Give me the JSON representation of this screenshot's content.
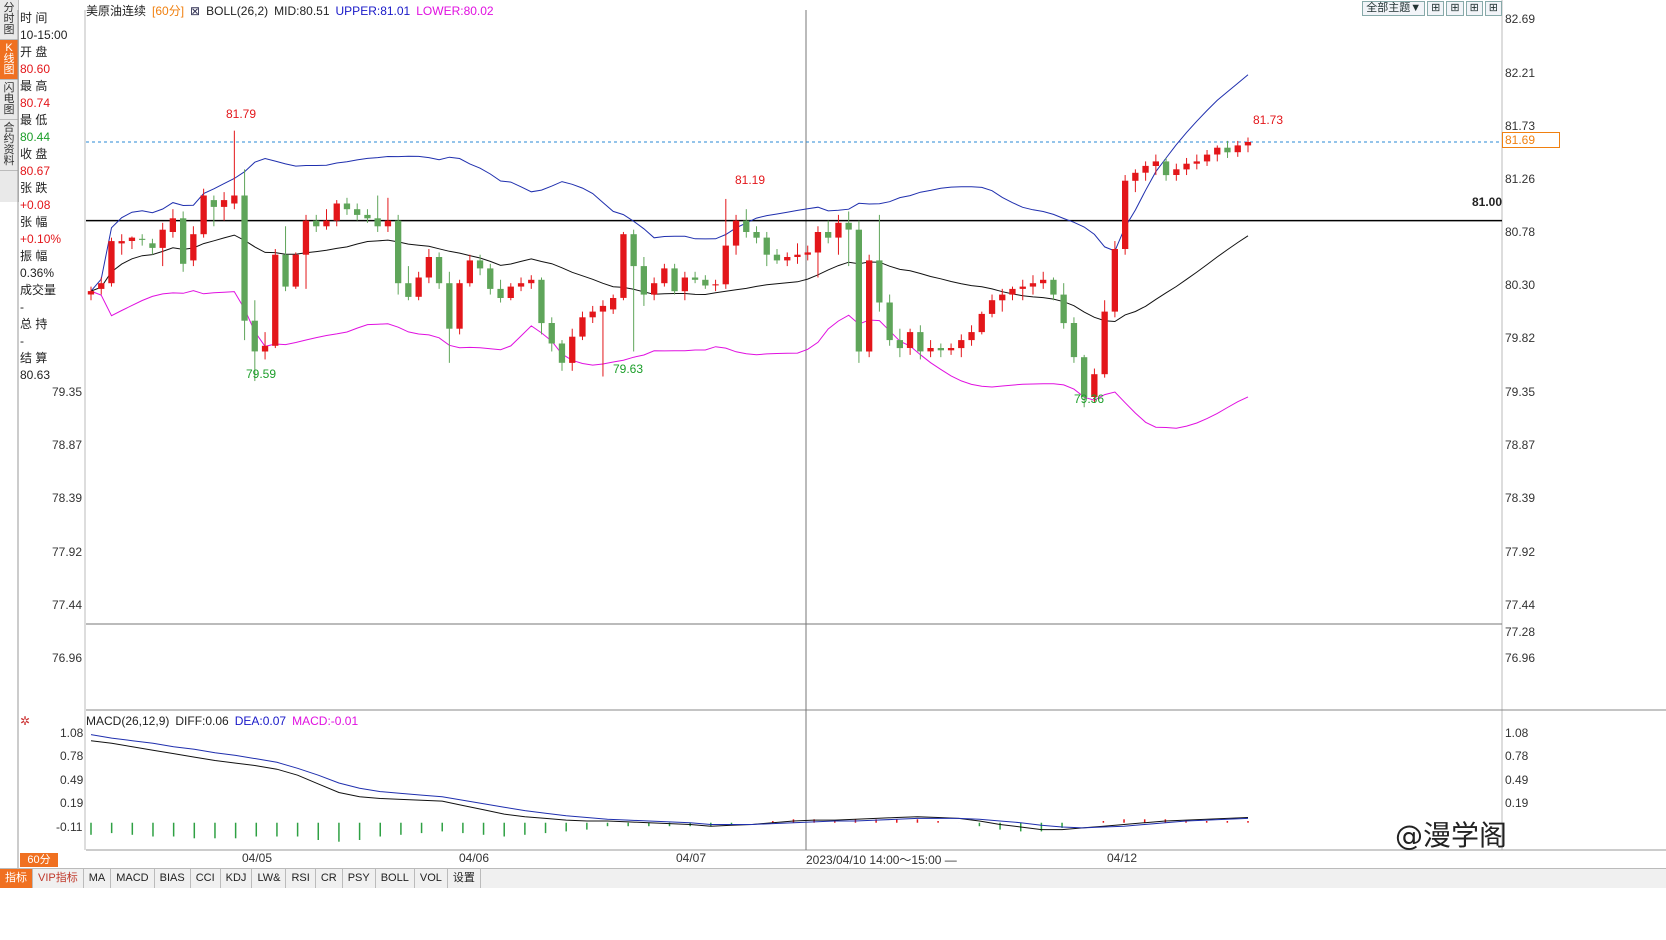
{
  "sidebar": {
    "tabs": [
      "分时图",
      "K线图",
      "闪电图",
      "合约资料"
    ],
    "info": [
      {
        "label": "时 间",
        "value": "10-15:00",
        "color": "normal"
      },
      {
        "label": "开 盘",
        "value": "80.60",
        "color": "red"
      },
      {
        "label": "最 高",
        "value": "80.74",
        "color": "red"
      },
      {
        "label": "最 低",
        "value": "80.44",
        "color": "green"
      },
      {
        "label": "收 盘",
        "value": "80.67",
        "color": "red"
      },
      {
        "label": "张 跌",
        "value": "+0.08",
        "color": "red"
      },
      {
        "label": "张 幅",
        "value": "+0.10%",
        "color": "red"
      },
      {
        "label": "振 幅",
        "value": "0.36%",
        "color": "normal"
      },
      {
        "label": "成交量",
        "value": "-",
        "color": "normal"
      },
      {
        "label": "总 持",
        "value": "-",
        "color": "normal"
      },
      {
        "label": "结 算",
        "value": "80.63",
        "color": "normal"
      }
    ]
  },
  "header": {
    "name": "美原油连续",
    "period_tag": "[60分]",
    "indicator": "BOLL(26,2)",
    "mid": "MID:80.51",
    "upper": "UPPER:81.01",
    "lower": "LOWER:80.02"
  },
  "toolbar": {
    "theme_label": "全部主题▼",
    "btn1": "⊞",
    "btn2": "⊞",
    "btn3": "⊞",
    "btn4": "⊞"
  },
  "price_axis": {
    "ticks": [
      "82.69",
      "82.21",
      "81.73",
      "81.26",
      "80.78",
      "80.30",
      "79.82",
      "79.35",
      "78.87",
      "78.39",
      "77.92",
      "77.44",
      "76.96"
    ],
    "current": "81.69",
    "level_line": "81.00",
    "cursor_low": "77.28"
  },
  "annotations": {
    "high1": "81.79",
    "low1": "79.59",
    "high2": "81.19",
    "low2": "79.63",
    "low3": "79.36",
    "high3": "81.73"
  },
  "macd": {
    "label": "MACD(26,12,9)",
    "diff": "DIFF:0.06",
    "dea": "DEA:0.07",
    "macd": "MACD:-0.01",
    "ticks": [
      "1.08",
      "0.78",
      "0.49",
      "0.19",
      "-0.11"
    ]
  },
  "x_axis": {
    "labels": [
      "04/05",
      "04/06",
      "04/07",
      "04/12"
    ],
    "cursor_time": "2023/04/10 14:00～15:00 —"
  },
  "bottom_tabs": {
    "period": "60分",
    "items": [
      "指标",
      "VIP指标",
      "MA",
      "MACD",
      "BIAS",
      "CCI",
      "KDJ",
      "LW&",
      "RSI",
      "CR",
      "PSY",
      "BOLL",
      "VOL",
      "设置"
    ]
  },
  "watermark": "@漫学阁",
  "colors": {
    "up": "#e3161a",
    "down": "#5fa55a",
    "upper": "#1f2fae",
    "lower": "#e010e0",
    "mid": "#111111",
    "accent": "#f07020"
  },
  "chart_data": {
    "type": "candlestick",
    "title": "美原油连续",
    "period": "60分",
    "ylim": [
      76.7,
      82.85
    ],
    "candles": [
      {
        "o": 80.35,
        "h": 80.42,
        "l": 80.3,
        "c": 80.38
      },
      {
        "o": 80.4,
        "h": 80.5,
        "l": 80.35,
        "c": 80.45
      },
      {
        "o": 80.45,
        "h": 80.85,
        "l": 80.42,
        "c": 80.82
      },
      {
        "o": 80.8,
        "h": 80.88,
        "l": 80.7,
        "c": 80.82
      },
      {
        "o": 80.82,
        "h": 80.86,
        "l": 80.75,
        "c": 80.85
      },
      {
        "o": 80.84,
        "h": 80.88,
        "l": 80.78,
        "c": 80.83
      },
      {
        "o": 80.8,
        "h": 80.84,
        "l": 80.7,
        "c": 80.76
      },
      {
        "o": 80.76,
        "h": 80.98,
        "l": 80.6,
        "c": 80.92
      },
      {
        "o": 80.9,
        "h": 81.1,
        "l": 80.85,
        "c": 81.02
      },
      {
        "o": 81.02,
        "h": 81.08,
        "l": 80.55,
        "c": 80.62
      },
      {
        "o": 80.65,
        "h": 80.95,
        "l": 80.6,
        "c": 80.88
      },
      {
        "o": 80.88,
        "h": 81.28,
        "l": 80.85,
        "c": 81.22
      },
      {
        "o": 81.18,
        "h": 81.22,
        "l": 80.95,
        "c": 81.12
      },
      {
        "o": 81.12,
        "h": 81.25,
        "l": 81.0,
        "c": 81.18
      },
      {
        "o": 81.15,
        "h": 81.79,
        "l": 81.1,
        "c": 81.22
      },
      {
        "o": 81.22,
        "h": 81.45,
        "l": 79.95,
        "c": 80.12
      },
      {
        "o": 80.12,
        "h": 80.3,
        "l": 79.59,
        "c": 79.85
      },
      {
        "o": 79.85,
        "h": 80.02,
        "l": 79.78,
        "c": 79.9
      },
      {
        "o": 79.9,
        "h": 80.75,
        "l": 79.88,
        "c": 80.7
      },
      {
        "o": 80.7,
        "h": 80.95,
        "l": 80.38,
        "c": 80.42
      },
      {
        "o": 80.42,
        "h": 80.72,
        "l": 80.4,
        "c": 80.7
      },
      {
        "o": 80.7,
        "h": 81.05,
        "l": 80.4,
        "c": 81.0
      },
      {
        "o": 81.0,
        "h": 81.05,
        "l": 80.9,
        "c": 80.95
      },
      {
        "o": 80.95,
        "h": 81.1,
        "l": 80.92,
        "c": 81.0
      },
      {
        "o": 81.0,
        "h": 81.18,
        "l": 80.95,
        "c": 81.15
      },
      {
        "o": 81.15,
        "h": 81.2,
        "l": 81.05,
        "c": 81.1
      },
      {
        "o": 81.1,
        "h": 81.15,
        "l": 81.0,
        "c": 81.05
      },
      {
        "o": 81.05,
        "h": 81.1,
        "l": 80.98,
        "c": 81.02
      },
      {
        "o": 81.02,
        "h": 81.22,
        "l": 80.9,
        "c": 80.95
      },
      {
        "o": 80.95,
        "h": 81.2,
        "l": 80.9,
        "c": 81.0
      },
      {
        "o": 81.0,
        "h": 81.05,
        "l": 80.35,
        "c": 80.45
      },
      {
        "o": 80.45,
        "h": 80.6,
        "l": 80.3,
        "c": 80.33
      },
      {
        "o": 80.33,
        "h": 80.55,
        "l": 80.3,
        "c": 80.5
      },
      {
        "o": 80.5,
        "h": 80.75,
        "l": 80.45,
        "c": 80.68
      },
      {
        "o": 80.68,
        "h": 80.72,
        "l": 80.4,
        "c": 80.45
      },
      {
        "o": 80.45,
        "h": 80.55,
        "l": 79.75,
        "c": 80.05
      },
      {
        "o": 80.05,
        "h": 80.48,
        "l": 80.0,
        "c": 80.45
      },
      {
        "o": 80.45,
        "h": 80.7,
        "l": 80.42,
        "c": 80.65
      },
      {
        "o": 80.65,
        "h": 80.7,
        "l": 80.52,
        "c": 80.58
      },
      {
        "o": 80.58,
        "h": 80.62,
        "l": 80.35,
        "c": 80.4
      },
      {
        "o": 80.4,
        "h": 80.48,
        "l": 80.28,
        "c": 80.32
      },
      {
        "o": 80.32,
        "h": 80.45,
        "l": 80.3,
        "c": 80.42
      },
      {
        "o": 80.42,
        "h": 80.5,
        "l": 80.38,
        "c": 80.45
      },
      {
        "o": 80.45,
        "h": 80.52,
        "l": 80.4,
        "c": 80.48
      },
      {
        "o": 80.48,
        "h": 80.5,
        "l": 80.0,
        "c": 80.1
      },
      {
        "o": 80.1,
        "h": 80.15,
        "l": 79.85,
        "c": 79.92
      },
      {
        "o": 79.92,
        "h": 79.95,
        "l": 79.68,
        "c": 79.75
      },
      {
        "o": 79.75,
        "h": 80.05,
        "l": 79.68,
        "c": 79.98
      },
      {
        "o": 79.98,
        "h": 80.2,
        "l": 79.95,
        "c": 80.15
      },
      {
        "o": 80.15,
        "h": 80.25,
        "l": 80.1,
        "c": 80.2
      },
      {
        "o": 80.2,
        "h": 80.3,
        "l": 79.63,
        "c": 80.25
      },
      {
        "o": 80.22,
        "h": 80.35,
        "l": 80.18,
        "c": 80.32
      },
      {
        "o": 80.32,
        "h": 80.9,
        "l": 80.3,
        "c": 80.88
      },
      {
        "o": 80.88,
        "h": 80.92,
        "l": 79.85,
        "c": 80.6
      },
      {
        "o": 80.6,
        "h": 80.68,
        "l": 80.25,
        "c": 80.35
      },
      {
        "o": 80.35,
        "h": 80.5,
        "l": 80.3,
        "c": 80.45
      },
      {
        "o": 80.45,
        "h": 80.62,
        "l": 80.42,
        "c": 80.58
      },
      {
        "o": 80.58,
        "h": 80.62,
        "l": 80.35,
        "c": 80.38
      },
      {
        "o": 80.38,
        "h": 80.55,
        "l": 80.3,
        "c": 80.5
      },
      {
        "o": 80.5,
        "h": 80.55,
        "l": 80.45,
        "c": 80.48
      },
      {
        "o": 80.48,
        "h": 80.52,
        "l": 80.4,
        "c": 80.43
      },
      {
        "o": 80.43,
        "h": 80.48,
        "l": 80.38,
        "c": 80.44
      },
      {
        "o": 80.44,
        "h": 81.19,
        "l": 80.4,
        "c": 80.78
      },
      {
        "o": 80.78,
        "h": 81.05,
        "l": 80.7,
        "c": 81.0
      },
      {
        "o": 81.0,
        "h": 81.1,
        "l": 80.85,
        "c": 80.9
      },
      {
        "o": 80.9,
        "h": 80.95,
        "l": 80.8,
        "c": 80.85
      },
      {
        "o": 80.85,
        "h": 80.9,
        "l": 80.6,
        "c": 80.7
      },
      {
        "o": 80.7,
        "h": 80.75,
        "l": 80.62,
        "c": 80.65
      },
      {
        "o": 80.65,
        "h": 80.72,
        "l": 80.6,
        "c": 80.68
      },
      {
        "o": 80.68,
        "h": 80.8,
        "l": 80.62,
        "c": 80.7
      },
      {
        "o": 80.7,
        "h": 80.78,
        "l": 80.65,
        "c": 80.72
      },
      {
        "o": 80.72,
        "h": 80.95,
        "l": 80.5,
        "c": 80.9
      },
      {
        "o": 80.9,
        "h": 81.0,
        "l": 80.8,
        "c": 80.85
      },
      {
        "o": 80.85,
        "h": 81.05,
        "l": 80.7,
        "c": 80.98
      },
      {
        "o": 80.98,
        "h": 81.08,
        "l": 80.6,
        "c": 80.92
      },
      {
        "o": 80.92,
        "h": 81.0,
        "l": 79.75,
        "c": 79.85
      },
      {
        "o": 79.85,
        "h": 80.7,
        "l": 79.8,
        "c": 80.65
      },
      {
        "o": 80.65,
        "h": 81.05,
        "l": 80.2,
        "c": 80.28
      },
      {
        "o": 80.28,
        "h": 80.35,
        "l": 79.9,
        "c": 79.95
      },
      {
        "o": 79.95,
        "h": 80.05,
        "l": 79.8,
        "c": 79.88
      },
      {
        "o": 79.88,
        "h": 80.05,
        "l": 79.82,
        "c": 80.02
      },
      {
        "o": 80.02,
        "h": 80.08,
        "l": 79.78,
        "c": 79.85
      },
      {
        "o": 79.85,
        "h": 79.95,
        "l": 79.8,
        "c": 79.88
      },
      {
        "o": 79.88,
        "h": 79.92,
        "l": 79.8,
        "c": 79.86
      },
      {
        "o": 79.86,
        "h": 79.92,
        "l": 79.82,
        "c": 79.88
      },
      {
        "o": 79.88,
        "h": 80.0,
        "l": 79.8,
        "c": 79.95
      },
      {
        "o": 79.95,
        "h": 80.08,
        "l": 79.9,
        "c": 80.02
      },
      {
        "o": 80.02,
        "h": 80.2,
        "l": 80.0,
        "c": 80.18
      },
      {
        "o": 80.18,
        "h": 80.35,
        "l": 80.15,
        "c": 80.3
      },
      {
        "o": 80.3,
        "h": 80.4,
        "l": 80.2,
        "c": 80.35
      },
      {
        "o": 80.35,
        "h": 80.42,
        "l": 80.3,
        "c": 80.4
      },
      {
        "o": 80.4,
        "h": 80.48,
        "l": 80.3,
        "c": 80.42
      },
      {
        "o": 80.42,
        "h": 80.52,
        "l": 80.35,
        "c": 80.45
      },
      {
        "o": 80.45,
        "h": 80.55,
        "l": 80.4,
        "c": 80.48
      },
      {
        "o": 80.48,
        "h": 80.5,
        "l": 80.3,
        "c": 80.35
      },
      {
        "o": 80.35,
        "h": 80.45,
        "l": 80.05,
        "c": 80.1
      },
      {
        "o": 80.1,
        "h": 80.15,
        "l": 79.75,
        "c": 79.8
      },
      {
        "o": 79.8,
        "h": 79.82,
        "l": 79.36,
        "c": 79.45
      },
      {
        "o": 79.45,
        "h": 79.7,
        "l": 79.4,
        "c": 79.65
      },
      {
        "o": 79.65,
        "h": 80.3,
        "l": 79.62,
        "c": 80.2
      },
      {
        "o": 80.2,
        "h": 80.82,
        "l": 80.15,
        "c": 80.75
      },
      {
        "o": 80.75,
        "h": 81.4,
        "l": 80.7,
        "c": 81.35
      },
      {
        "o": 81.35,
        "h": 81.45,
        "l": 81.25,
        "c": 81.42
      },
      {
        "o": 81.42,
        "h": 81.52,
        "l": 81.35,
        "c": 81.48
      },
      {
        "o": 81.48,
        "h": 81.58,
        "l": 81.4,
        "c": 81.52
      },
      {
        "o": 81.52,
        "h": 81.55,
        "l": 81.35,
        "c": 81.4
      },
      {
        "o": 81.4,
        "h": 81.5,
        "l": 81.35,
        "c": 81.45
      },
      {
        "o": 81.45,
        "h": 81.55,
        "l": 81.4,
        "c": 81.5
      },
      {
        "o": 81.5,
        "h": 81.58,
        "l": 81.45,
        "c": 81.52
      },
      {
        "o": 81.52,
        "h": 81.62,
        "l": 81.48,
        "c": 81.58
      },
      {
        "o": 81.58,
        "h": 81.66,
        "l": 81.52,
        "c": 81.64
      },
      {
        "o": 81.64,
        "h": 81.7,
        "l": 81.55,
        "c": 81.6
      },
      {
        "o": 81.6,
        "h": 81.7,
        "l": 81.56,
        "c": 81.66
      },
      {
        "o": 81.66,
        "h": 81.73,
        "l": 81.6,
        "c": 81.69
      }
    ],
    "macd_diff": [
      0.95,
      0.92,
      0.88,
      0.84,
      0.8,
      0.76,
      0.72,
      0.69,
      0.66,
      0.62,
      0.55,
      0.45,
      0.35,
      0.3,
      0.28,
      0.27,
      0.26,
      0.25,
      0.2,
      0.15,
      0.1,
      0.07,
      0.05,
      0.03,
      0.02,
      0.02,
      0.01,
      0.0,
      -0.01,
      -0.02,
      -0.04,
      -0.03,
      -0.02,
      0.0,
      0.02,
      0.03,
      0.03,
      0.04,
      0.05,
      0.06,
      0.07,
      0.06,
      0.05,
      0.02,
      -0.02,
      -0.05,
      -0.08,
      -0.08,
      -0.06,
      -0.04,
      -0.02,
      0.0,
      0.02,
      0.03,
      0.04,
      0.05,
      0.06
    ],
    "macd_dea": [
      1.02,
      0.98,
      0.95,
      0.92,
      0.88,
      0.85,
      0.81,
      0.78,
      0.74,
      0.7,
      0.63,
      0.55,
      0.46,
      0.4,
      0.36,
      0.34,
      0.32,
      0.3,
      0.26,
      0.22,
      0.18,
      0.14,
      0.11,
      0.08,
      0.06,
      0.04,
      0.03,
      0.02,
      0.01,
      0.0,
      -0.02,
      -0.02,
      -0.02,
      -0.01,
      0.0,
      0.01,
      0.02,
      0.02,
      0.03,
      0.04,
      0.05,
      0.05,
      0.05,
      0.04,
      0.02,
      0.0,
      -0.03,
      -0.05,
      -0.06,
      -0.05,
      -0.04,
      -0.02,
      0.0,
      0.02,
      0.03,
      0.04,
      0.05
    ]
  }
}
